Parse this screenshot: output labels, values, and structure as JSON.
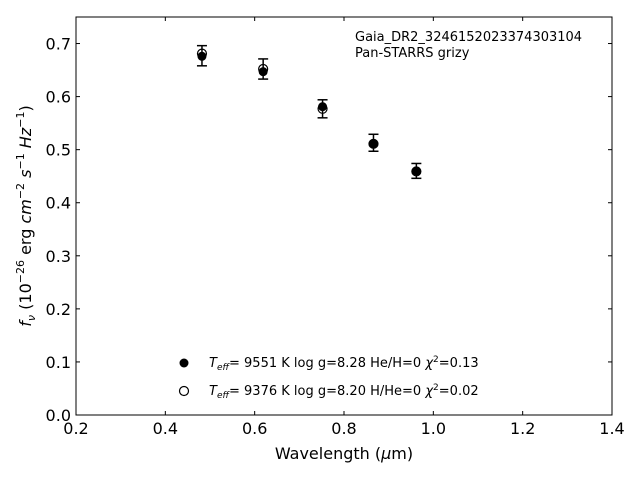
{
  "chart_data": {
    "type": "scatter",
    "title": "",
    "xlabel": "Wavelength (μm)",
    "ylabel": "f_ν (10⁻²⁶ erg cm⁻² s⁻¹ Hz⁻¹)",
    "xlim": [
      0.2,
      1.4
    ],
    "ylim": [
      0.0,
      0.75
    ],
    "xticks": [
      0.2,
      0.4,
      0.6,
      0.8,
      1.0,
      1.2,
      1.4
    ],
    "xtick_labels": [
      "0.2",
      "0.4",
      "0.6",
      "0.8",
      "1.0",
      "1.2",
      "1.4"
    ],
    "yticks": [
      0.0,
      0.1,
      0.2,
      0.3,
      0.4,
      0.5,
      0.6,
      0.7
    ],
    "ytick_labels": [
      "0.0",
      "0.1",
      "0.2",
      "0.3",
      "0.4",
      "0.5",
      "0.6",
      "0.7"
    ],
    "grid": false,
    "annotation": [
      "Gaia_DR2_3246152023374303104",
      "Pan-STARRS grizy"
    ],
    "observed": {
      "x": [
        0.482,
        0.619,
        0.752,
        0.866,
        0.962
      ],
      "y": [
        0.677,
        0.652,
        0.577,
        0.513,
        0.46
      ],
      "yerr": [
        0.019,
        0.019,
        0.017,
        0.016,
        0.014
      ]
    },
    "series": [
      {
        "name": "T_eff= 9551 K log g=8.28 He/H=0 χ²=0.13",
        "marker": "filled-circle",
        "x": [
          0.482,
          0.619,
          0.752,
          0.866,
          0.962
        ],
        "y": [
          0.676,
          0.647,
          0.581,
          0.511,
          0.46
        ]
      },
      {
        "name": "T_eff= 9376 K log g=8.20 H/He=0 χ²=0.02",
        "marker": "open-circle",
        "x": [
          0.482,
          0.619,
          0.752,
          0.866,
          0.962
        ],
        "y": [
          0.681,
          0.652,
          0.577,
          0.511,
          0.459
        ]
      }
    ],
    "legend": {
      "placement": "bottom-center",
      "entries": [
        {
          "teff": "9551 K",
          "logg": "log g=8.28",
          "comp": "He/H=0",
          "chi": "=0.13"
        },
        {
          "teff": "9376 K",
          "logg": "log g=8.20",
          "comp": "H/He=0",
          "chi": "=0.02"
        }
      ]
    }
  }
}
